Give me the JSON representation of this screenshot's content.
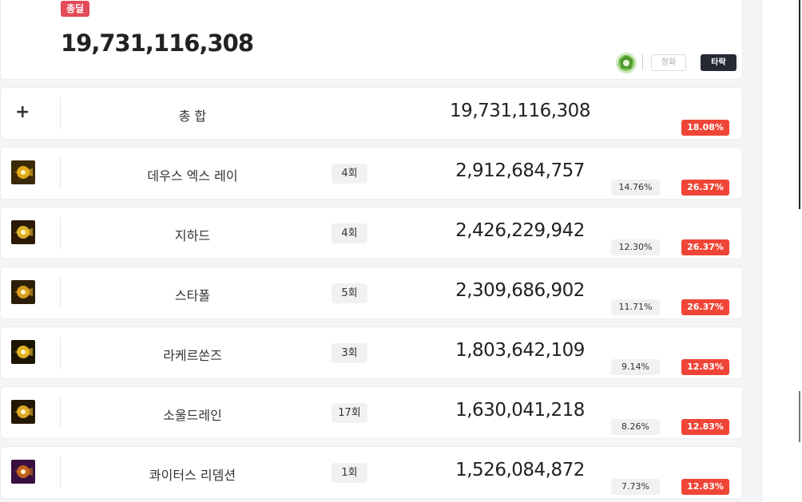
{
  "summary": {
    "badge": "총딜",
    "total": "19,731,116,308",
    "gem_icon": "green-gem-icon",
    "btn_pure": "정화",
    "btn_fall": "타락"
  },
  "total_row": {
    "icon": "plus-icon",
    "name": "총 합",
    "damage": "19,731,116,308",
    "rate": "18.08%"
  },
  "skills": [
    {
      "name": "데우스 엑스 레이",
      "count": "4회",
      "damage": "2,912,684,757",
      "share": "14.76%",
      "rate": "26.37%",
      "icon": "skill-beam-icon",
      "colors": [
        "#3a2a05",
        "#f2b51c"
      ]
    },
    {
      "name": "지하드",
      "count": "4회",
      "damage": "2,426,229,942",
      "share": "12.30%",
      "rate": "26.37%",
      "icon": "skill-burst-icon",
      "colors": [
        "#2b1a05",
        "#f0c030"
      ]
    },
    {
      "name": "스타폴",
      "count": "5회",
      "damage": "2,309,686,902",
      "share": "11.71%",
      "rate": "26.37%",
      "icon": "skill-starfall-icon",
      "colors": [
        "#2d1f07",
        "#e8a822"
      ]
    },
    {
      "name": "라케르쏜즈",
      "count": "3회",
      "damage": "1,803,642,109",
      "share": "9.14%",
      "rate": "12.83%",
      "icon": "skill-thorns-icon",
      "colors": [
        "#1d1504",
        "#f5c028"
      ]
    },
    {
      "name": "소울드레인",
      "count": "17회",
      "damage": "1,630,041,218",
      "share": "8.26%",
      "rate": "12.83%",
      "icon": "skill-soul-drain-icon",
      "colors": [
        "#241804",
        "#eeb52a"
      ]
    },
    {
      "name": "콰이터스 리뎀션",
      "count": "1회",
      "damage": "1,526,084,872",
      "share": "7.73%",
      "rate": "12.83%",
      "icon": "skill-redemption-icon",
      "colors": [
        "#3a1040",
        "#d06a1a"
      ]
    }
  ]
}
